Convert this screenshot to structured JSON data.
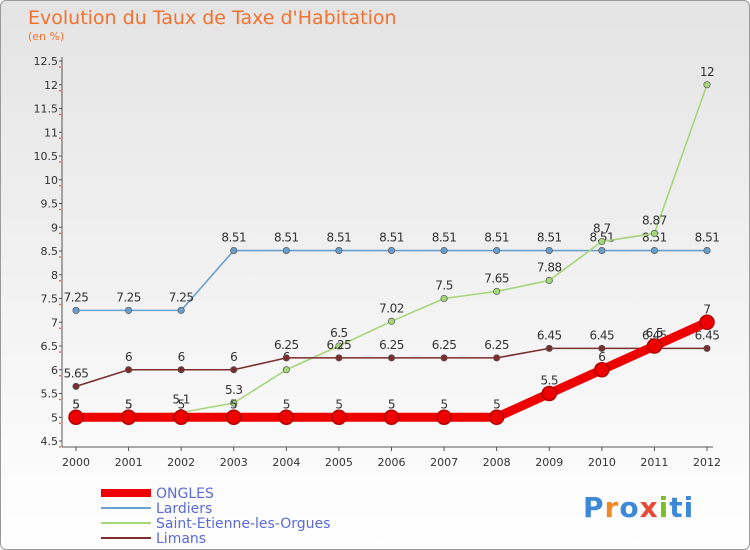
{
  "chart_data": {
    "type": "line",
    "title": "Evolution du Taux de Taxe d'Habitation",
    "subtitle": "(en %)",
    "x": [
      "2000",
      "2001",
      "2002",
      "2003",
      "2004",
      "2005",
      "2006",
      "2007",
      "2008",
      "2009",
      "2010",
      "2011",
      "2012"
    ],
    "ylim": [
      4.5,
      12.5
    ],
    "yticks": [
      "4.5",
      "5",
      "5.5",
      "6",
      "6.5",
      "7",
      "7.5",
      "8",
      "8.5",
      "9",
      "9.5",
      "10",
      "10.5",
      "11",
      "11.5",
      "12",
      "12.5"
    ],
    "grid": "none",
    "legend_position": "bottom-left",
    "series": [
      {
        "name": "ONGLES",
        "color": "#ee0000",
        "values": [
          5,
          5,
          5,
          5,
          5,
          5,
          5,
          5,
          5,
          5.5,
          6,
          6.5,
          7
        ],
        "labels": [
          "5",
          "5",
          "5",
          "5",
          "5",
          "5",
          "5",
          "5",
          "5",
          "5.5",
          "6",
          "6.5",
          "7"
        ]
      },
      {
        "name": "Lardiers",
        "color": "#6a9fcb",
        "values": [
          7.25,
          7.25,
          7.25,
          8.51,
          8.51,
          8.51,
          8.51,
          8.51,
          8.51,
          8.51,
          8.51,
          8.51,
          8.51
        ],
        "labels": [
          "7.25",
          "7.25",
          "7.25",
          "8.51",
          "8.51",
          "8.51",
          "8.51",
          "8.51",
          "8.51",
          "8.51",
          "8.51",
          "8.51",
          "8.51"
        ]
      },
      {
        "name": "Saint-Etienne-les-Orgues",
        "color": "#a6d67a",
        "values": [
          5,
          5,
          5.1,
          5.3,
          6,
          6.5,
          7.02,
          7.5,
          7.65,
          7.88,
          8.7,
          8.87,
          12
        ],
        "labels": [
          "5",
          "5",
          "5.1",
          "5.3",
          "6",
          "6.5",
          "7.02",
          "7.5",
          "7.65",
          "7.88",
          "8.7",
          "8.87",
          "12"
        ]
      },
      {
        "name": "Limans",
        "color": "#7a2e2e",
        "values": [
          5.65,
          6,
          6,
          6,
          6.25,
          6.25,
          6.25,
          6.25,
          6.25,
          6.45,
          6.45,
          6.45,
          6.45
        ],
        "labels": [
          "5.65",
          "6",
          "6",
          "6",
          "6.25",
          "6.25",
          "6.25",
          "6.25",
          "6.25",
          "6.45",
          "6.45",
          "6.45",
          "6.45"
        ]
      }
    ]
  },
  "logo": {
    "text": "Proxiti"
  }
}
